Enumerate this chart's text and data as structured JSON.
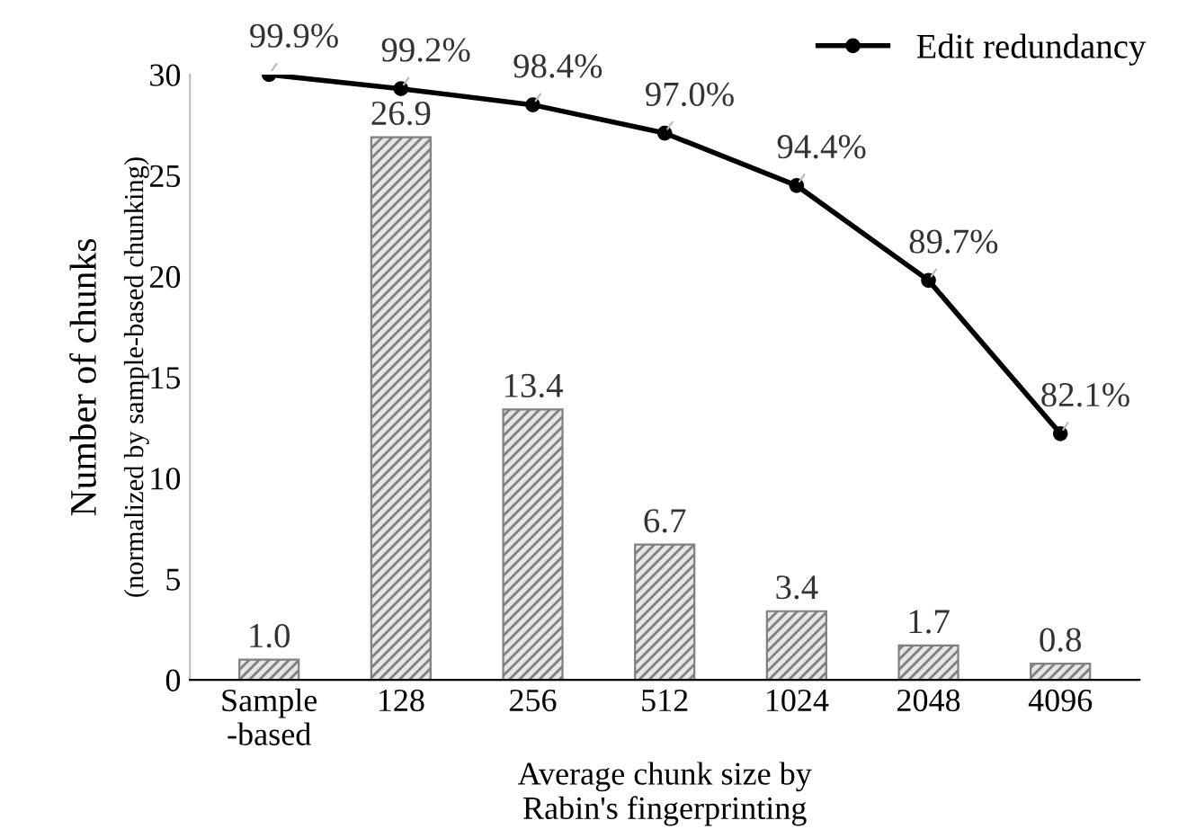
{
  "chart_data": {
    "type": "bar",
    "categories": [
      "Sample\n-based",
      "128",
      "256",
      "512",
      "1024",
      "2048",
      "4096"
    ],
    "xlabel": "Average chunk size by\nRabin's fingerprinting",
    "ylabel": "Number of chunks\n(normalized by sample-based chunking)",
    "ylim": [
      0,
      30
    ],
    "yticks": [
      0,
      5,
      10,
      15,
      20,
      25,
      30
    ],
    "y2lim": [
      69.9,
      99.9
    ],
    "series": [
      {
        "color": "#808080",
        "values": [
          1.0,
          26.9,
          13.4,
          6.7,
          3.4,
          1.7,
          0.8
        ],
        "value_labels": [
          "1.0",
          "26.9",
          "13.4",
          "6.7",
          "3.4",
          "1.7",
          "0.8"
        ]
      },
      {
        "type": "line",
        "name": "Edit redundancy",
        "axis": "y2",
        "color": "#000000",
        "marker": "circle",
        "values": [
          99.9,
          99.2,
          98.4,
          97.0,
          94.4,
          89.7,
          82.1
        ],
        "value_labels": [
          "99.9%",
          "99.2%",
          "98.4%",
          "97.0%",
          "94.4%",
          "89.7%",
          "82.1%"
        ]
      }
    ],
    "legend": "top right",
    "grid": false
  }
}
